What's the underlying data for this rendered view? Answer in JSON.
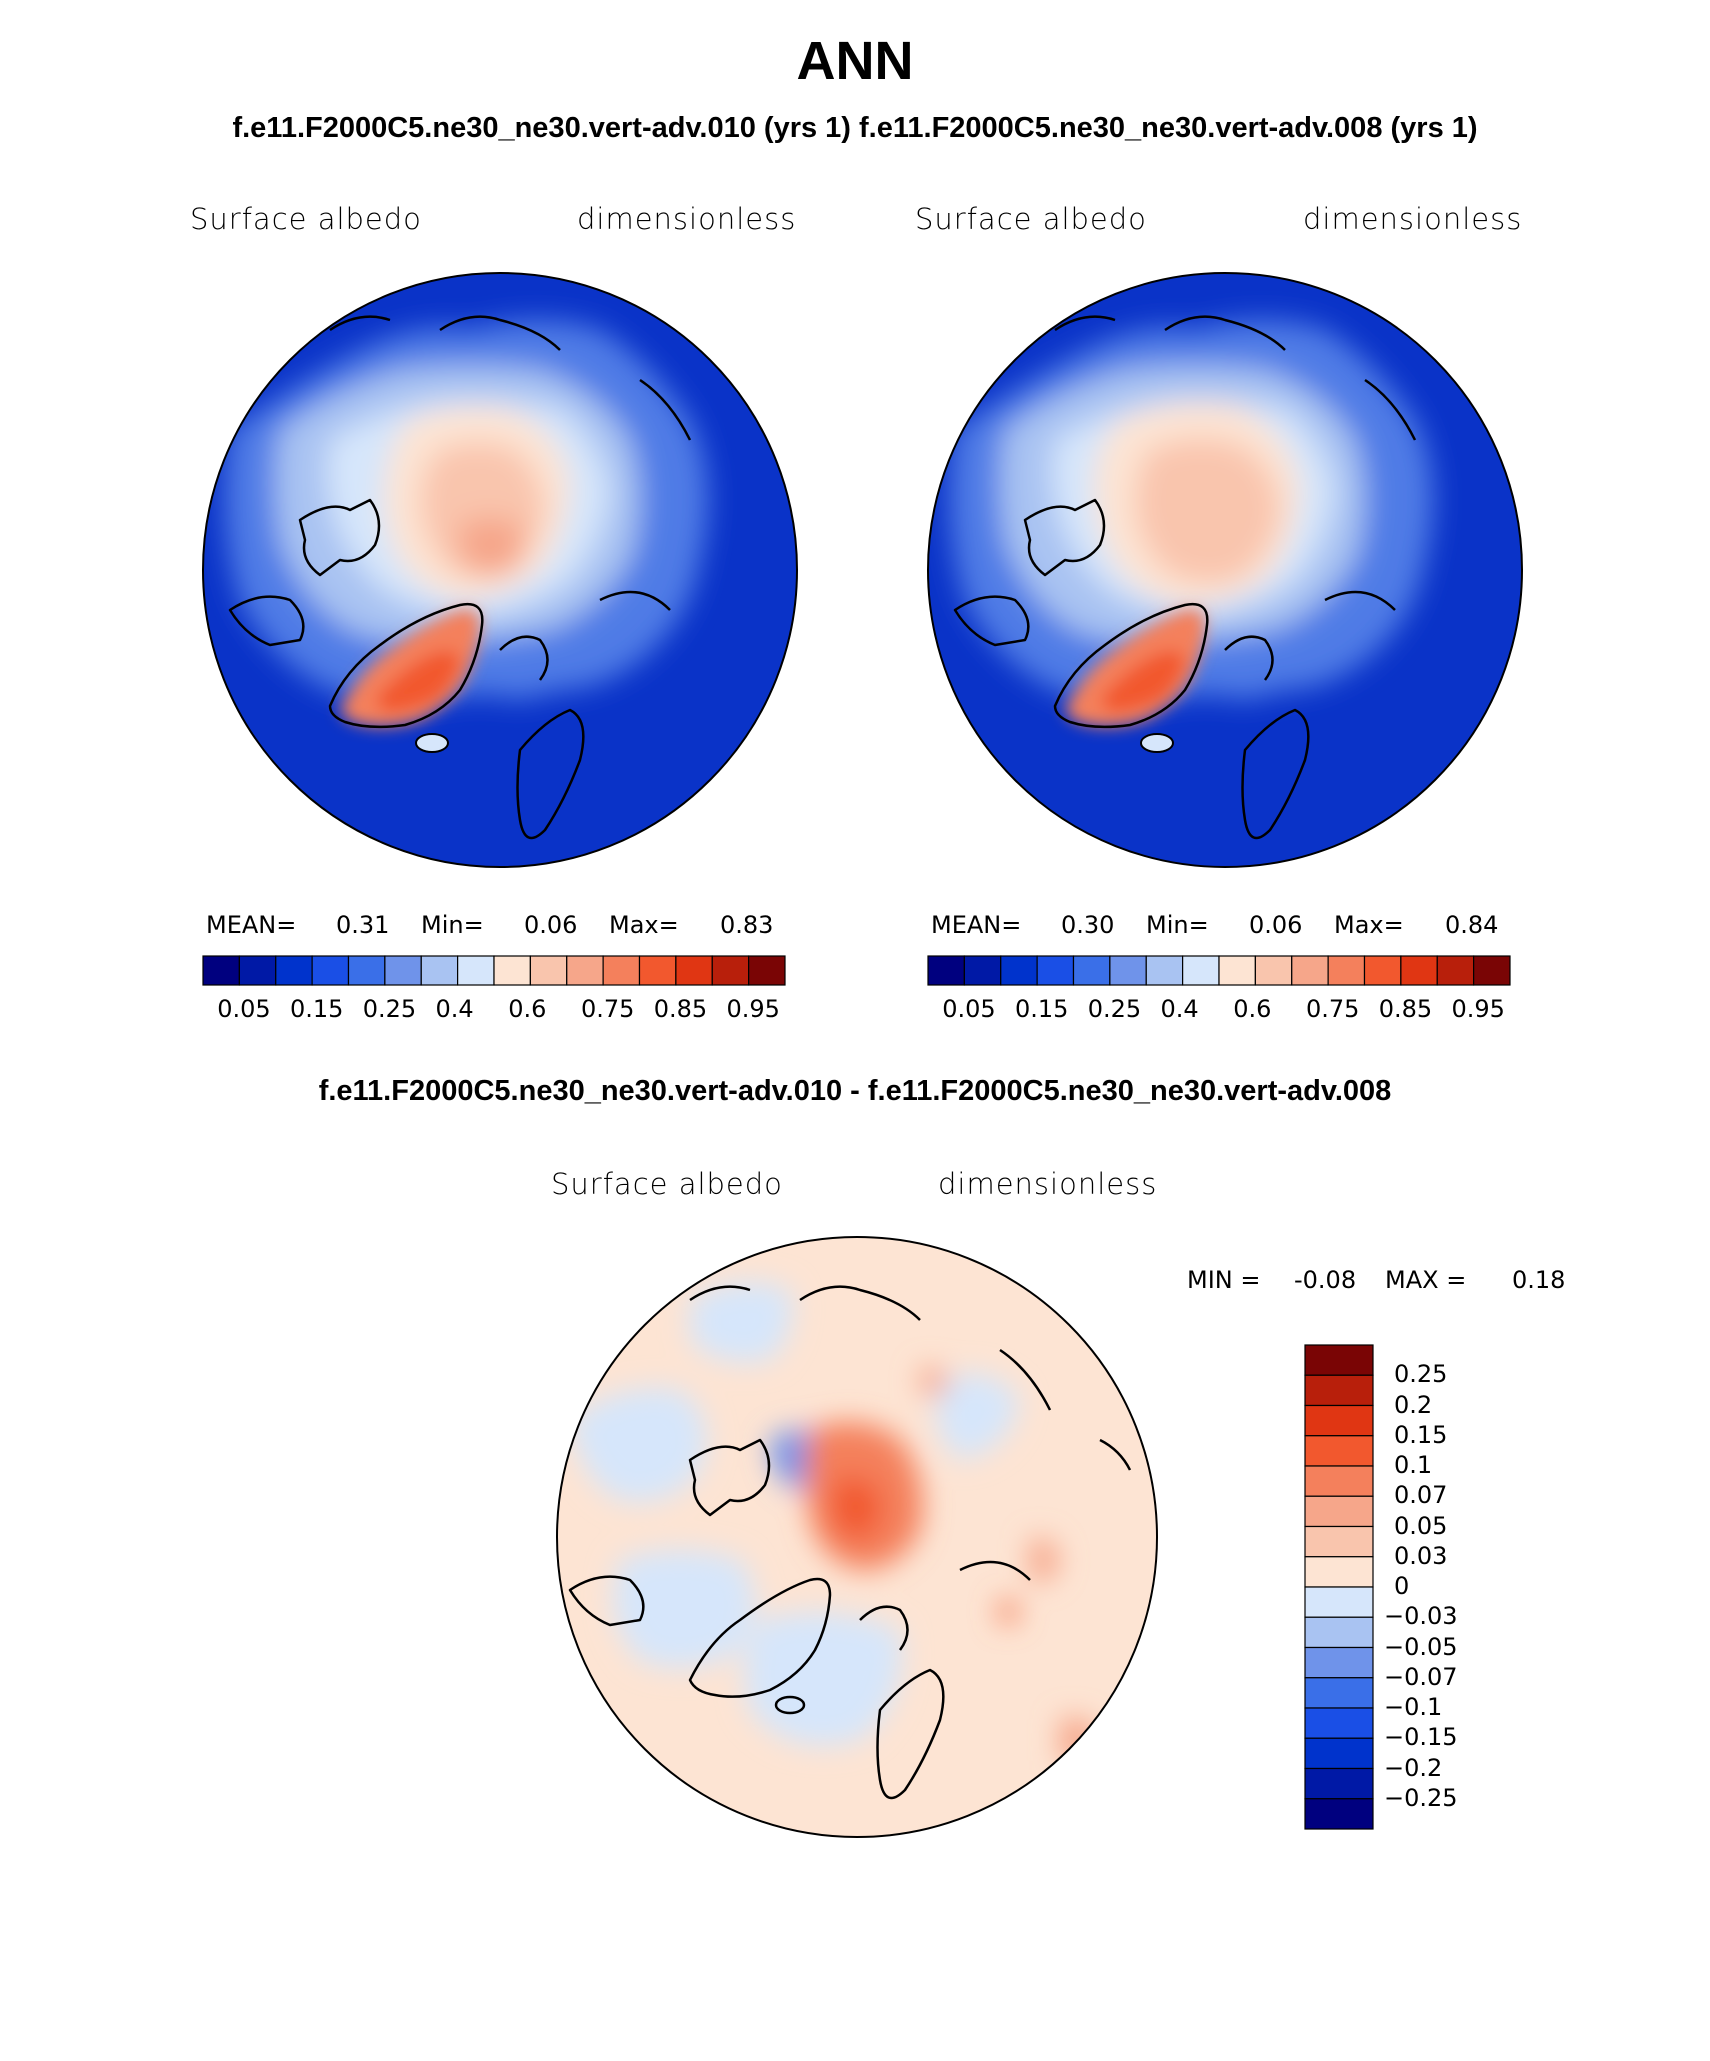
{
  "title": "ANN",
  "subtitle": "f.e11.F2000C5.ne30_ne30.vert-adv.010 (yrs 1)  f.e11.F2000C5.ne30_ne30.vert-adv.008 (yrs 1)",
  "panels": [
    {
      "variable": "Surface albedo",
      "units": "dimensionless",
      "mean_label": "MEAN=",
      "mean_value": "0.31",
      "min_label": "Min=",
      "min_value": "0.06",
      "max_label": "Max=",
      "max_value": "0.83"
    },
    {
      "variable": "Surface albedo",
      "units": "dimensionless",
      "mean_label": "MEAN=",
      "mean_value": "0.30",
      "min_label": "Min=",
      "min_value": "0.06",
      "max_label": "Max=",
      "max_value": "0.84"
    }
  ],
  "colorbar_main": {
    "colors": [
      "#00007f",
      "#0019a6",
      "#0033cc",
      "#1a4fe6",
      "#3a6fe8",
      "#6f93ea",
      "#a9c3f2",
      "#d6e6fb",
      "#fde4d3",
      "#f9c5ad",
      "#f6a68a",
      "#f4805c",
      "#f2582e",
      "#e03613",
      "#b81f0b",
      "#7a0505"
    ],
    "tick_labels": [
      "0.05",
      "0.15",
      "0.25",
      "0.4",
      "0.6",
      "0.75",
      "0.85",
      "0.95"
    ]
  },
  "diff": {
    "title": "f.e11.F2000C5.ne30_ne30.vert-adv.010 - f.e11.F2000C5.ne30_ne30.vert-adv.008",
    "variable": "Surface albedo",
    "units": "dimensionless",
    "min_label": "MIN =",
    "min_value": "-0.08",
    "max_label": "MAX =",
    "max_value": "0.18",
    "colorbar": {
      "colors_top_to_bottom": [
        "#7a0505",
        "#b81f0b",
        "#e03613",
        "#f2582e",
        "#f4805c",
        "#f6a68a",
        "#f9c5ad",
        "#fde4d3",
        "#d6e6fb",
        "#a9c3f2",
        "#6f93ea",
        "#3a6fe8",
        "#1a4fe6",
        "#0033cc",
        "#0019a6",
        "#00007f"
      ],
      "tick_labels": [
        "0.25",
        "0.2",
        "0.15",
        "0.1",
        "0.07",
        "0.05",
        "0.03",
        "0",
        "-0.03",
        "-0.05",
        "-0.07",
        "-0.1",
        "-0.15",
        "-0.2",
        "-0.25"
      ]
    }
  }
}
